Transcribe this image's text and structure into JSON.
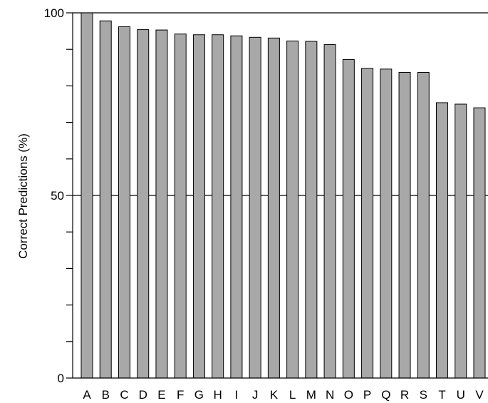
{
  "chart_data": {
    "type": "bar",
    "title": "",
    "xlabel": "",
    "ylabel": "Correct Predictions (%)",
    "ylim": [
      0,
      100
    ],
    "yticks_labeled": [
      0,
      50,
      100
    ],
    "yticks_minor": [
      10,
      20,
      30,
      40,
      60,
      70,
      80,
      90
    ],
    "grid": "horizontal lines at 50 and 100",
    "categories": [
      "A",
      "B",
      "C",
      "D",
      "E",
      "F",
      "G",
      "H",
      "I",
      "J",
      "K",
      "L",
      "M",
      "N",
      "O",
      "P",
      "Q",
      "R",
      "S",
      "T",
      "U",
      "V"
    ],
    "values": [
      100,
      97.8,
      96.2,
      95.4,
      95.3,
      94.2,
      94.0,
      94.0,
      93.7,
      93.3,
      93.1,
      92.3,
      92.2,
      91.3,
      87.2,
      84.8,
      84.6,
      83.7,
      83.7,
      75.4,
      75.0,
      74.0
    ],
    "bar_color": "#a8a8a8",
    "bar_edge_color": "#000000"
  }
}
